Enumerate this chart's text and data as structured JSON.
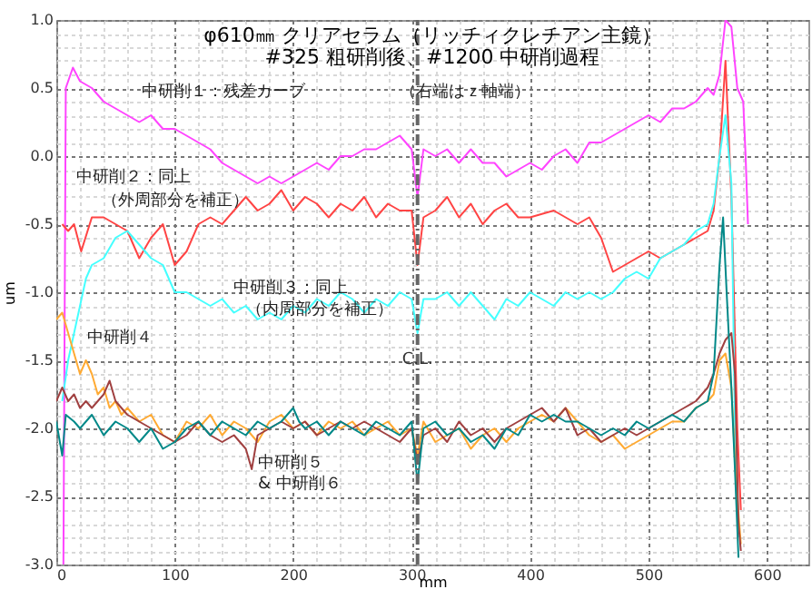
{
  "chart_data": {
    "type": "line",
    "title": "φ610㎜ クリアセラム（リッチィクレチアン主鏡）",
    "subtitle": "#325 粗研削後、#1200 中研削過程",
    "xlabel": "mm",
    "ylabel": "um",
    "xlim": [
      0,
      635
    ],
    "ylim": [
      -3,
      1
    ],
    "xticks": [
      0,
      {
        "value": 20,
        "label": null
      },
      {
        "value": 40,
        "label": null
      },
      {
        "value": 60,
        "label": null
      },
      {
        "value": 80,
        "label": null
      },
      100,
      {
        "value": 120,
        "label": null
      },
      {
        "value": 140,
        "label": null
      },
      {
        "value": 160,
        "label": null
      },
      {
        "value": 180,
        "label": null
      },
      200,
      {
        "value": 220,
        "label": null
      },
      {
        "value": 240,
        "label": null
      },
      {
        "value": 260,
        "label": null
      },
      {
        "value": 280,
        "label": null
      },
      300,
      {
        "value": 320,
        "label": null
      },
      {
        "value": 340,
        "label": null
      },
      {
        "value": 360,
        "label": null
      },
      {
        "value": 380,
        "label": null
      },
      400,
      {
        "value": 420,
        "label": null
      },
      {
        "value": 440,
        "label": null
      },
      {
        "value": 460,
        "label": null
      },
      {
        "value": 480,
        "label": null
      },
      500,
      {
        "value": 520,
        "label": null
      },
      {
        "value": 540,
        "label": null
      },
      {
        "value": 560,
        "label": null
      },
      {
        "value": 580,
        "label": null
      },
      600,
      {
        "value": 620,
        "label": null
      }
    ],
    "yticks": [
      {
        "value": -3,
        "label": "-3.0"
      },
      {
        "value": -2.9,
        "label": null
      },
      {
        "value": -2.8,
        "label": null
      },
      {
        "value": -2.7,
        "label": null
      },
      {
        "value": -2.6,
        "label": null
      },
      -2.5,
      {
        "value": -2.4,
        "label": null
      },
      {
        "value": -2.3,
        "label": null
      },
      {
        "value": -2.2,
        "label": null
      },
      {
        "value": -2.1,
        "label": null
      },
      {
        "value": -2,
        "label": "-2.0"
      },
      {
        "value": -1.9,
        "label": null
      },
      {
        "value": -1.8,
        "label": null
      },
      {
        "value": -1.7,
        "label": null
      },
      {
        "value": -1.6,
        "label": null
      },
      -1.5,
      {
        "value": -1.4,
        "label": null
      },
      {
        "value": -1.3,
        "label": null
      },
      {
        "value": -1.2,
        "label": null
      },
      {
        "value": -1.1,
        "label": null
      },
      {
        "value": -1,
        "label": "-1.0"
      },
      {
        "value": -0.9,
        "label": null
      },
      {
        "value": -0.8,
        "label": null
      },
      {
        "value": -0.7,
        "label": null
      },
      {
        "value": -0.6,
        "label": null
      },
      -0.5,
      {
        "value": -0.4,
        "label": null
      },
      {
        "value": -0.3,
        "label": null
      },
      {
        "value": -0.2,
        "label": null
      },
      {
        "value": -0.1,
        "label": null
      },
      {
        "value": 0,
        "label": "0.0"
      },
      {
        "value": 0.1,
        "label": null
      },
      {
        "value": 0.2,
        "label": null
      },
      {
        "value": 0.3,
        "label": null
      },
      {
        "value": 0.4,
        "label": null
      },
      0.5,
      {
        "value": 0.6,
        "label": null
      },
      {
        "value": 0.7,
        "label": null
      },
      {
        "value": 0.8,
        "label": null
      },
      {
        "value": 0.9,
        "label": null
      },
      {
        "value": 1,
        "label": "1.0"
      }
    ],
    "grid": true,
    "legend": false,
    "marker": "none",
    "line_style": "solid",
    "ref_lines": [
      {
        "axis": "x",
        "value": 305,
        "label": "C.L.",
        "color": "#666666",
        "line_style": "dashed"
      }
    ],
    "annotations": [
      "中研削１：残差カーブ",
      "（右端はｚ軸端）",
      "中研削２：同上",
      "（外周部分を補正）",
      "中研削３：同上",
      "（内周部分を補正）",
      "中研削４",
      "中研削５",
      "& 中研削６"
    ],
    "series": [
      {
        "color": "#ff44ff",
        "x": [
          6,
          8,
          14,
          20,
          30,
          40,
          50,
          60,
          70,
          80,
          90,
          100,
          110,
          120,
          130,
          140,
          150,
          160,
          170,
          180,
          190,
          200,
          210,
          220,
          230,
          240,
          250,
          260,
          270,
          280,
          290,
          300,
          305,
          310,
          320,
          330,
          340,
          350,
          360,
          370,
          380,
          390,
          400,
          410,
          420,
          430,
          440,
          450,
          460,
          470,
          480,
          490,
          500,
          510,
          520,
          530,
          540,
          550,
          555,
          560,
          565,
          570,
          575,
          580,
          582,
          584
        ],
        "values": [
          -3,
          0.5,
          0.65,
          0.55,
          0.5,
          0.4,
          0.35,
          0.3,
          0.25,
          0.3,
          0.2,
          0.2,
          0.15,
          0.1,
          0.05,
          -0.05,
          -0.1,
          -0.15,
          -0.2,
          -0.15,
          -0.2,
          -0.15,
          -0.1,
          -0.05,
          -0.1,
          0,
          0,
          0.05,
          0.05,
          0.1,
          0.15,
          0.05,
          -0.3,
          0.05,
          0,
          0.05,
          -0.05,
          0.05,
          -0.05,
          -0.05,
          -0.15,
          -0.1,
          -0.05,
          -0.1,
          0,
          0.05,
          -0.05,
          0.1,
          0.1,
          0.15,
          0.2,
          0.25,
          0.3,
          0.25,
          0.35,
          0.35,
          0.4,
          0.5,
          0.45,
          0.6,
          1,
          0.95,
          0.5,
          0.4,
          0,
          -0.5
        ]
      },
      {
        "color": "#ff4444",
        "x": [
          5,
          10,
          15,
          21,
          30,
          40,
          50,
          60,
          70,
          80,
          90,
          100,
          110,
          120,
          130,
          140,
          150,
          160,
          170,
          180,
          190,
          200,
          210,
          220,
          230,
          240,
          250,
          260,
          270,
          280,
          290,
          300,
          305,
          310,
          320,
          330,
          340,
          350,
          360,
          370,
          380,
          390,
          400,
          420,
          440,
          450,
          460,
          470,
          480,
          490,
          500,
          510,
          520,
          530,
          540,
          550,
          555,
          560,
          565,
          570,
          575,
          578
        ],
        "values": [
          -0.5,
          -0.55,
          -0.5,
          -0.7,
          -0.45,
          -0.45,
          -0.5,
          -0.55,
          -0.75,
          -0.6,
          -0.5,
          -0.8,
          -0.7,
          -0.5,
          -0.45,
          -0.5,
          -0.4,
          -0.3,
          -0.4,
          -0.35,
          -0.25,
          -0.4,
          -0.3,
          -0.35,
          -0.45,
          -0.35,
          -0.4,
          -0.3,
          -0.45,
          -0.35,
          -0.4,
          -0.4,
          -0.8,
          -0.45,
          -0.4,
          -0.3,
          -0.45,
          -0.35,
          -0.5,
          -0.4,
          -0.35,
          -0.45,
          -0.45,
          -0.4,
          -0.5,
          -0.45,
          -0.6,
          -0.85,
          -0.8,
          -0.75,
          -0.7,
          -0.75,
          -0.7,
          -0.65,
          -0.6,
          -0.55,
          -0.4,
          0,
          0.7,
          -0.3,
          -2,
          -2.6
        ]
      },
      {
        "color": "#44ffff",
        "x": [
          5,
          10,
          15,
          20,
          25,
          30,
          40,
          50,
          60,
          70,
          80,
          90,
          100,
          110,
          120,
          130,
          140,
          150,
          160,
          170,
          180,
          190,
          200,
          210,
          220,
          230,
          240,
          250,
          260,
          270,
          280,
          290,
          300,
          305,
          310,
          320,
          330,
          340,
          350,
          360,
          370,
          380,
          390,
          400,
          410,
          420,
          430,
          440,
          450,
          460,
          470,
          480,
          490,
          500,
          510,
          520,
          530,
          540,
          550,
          555,
          560,
          565,
          570,
          573,
          576
        ],
        "values": [
          -1.8,
          -1.5,
          -1.3,
          -1.1,
          -0.9,
          -0.8,
          -0.75,
          -0.6,
          -0.55,
          -0.65,
          -0.75,
          -0.8,
          -1.0,
          -1.0,
          -1.05,
          -1.1,
          -1.05,
          -1.15,
          -1.1,
          -1.2,
          -1.15,
          -1.2,
          -1.1,
          -1.15,
          -1.05,
          -1.1,
          -1.0,
          -1.05,
          -1.15,
          -1.05,
          -1.1,
          -1.0,
          -1.05,
          -1.3,
          -1.05,
          -1.05,
          -1.0,
          -1.1,
          -1.0,
          -1.1,
          -1.2,
          -1.05,
          -1.1,
          -1.0,
          -1.05,
          -1.1,
          -1.0,
          -1.05,
          -1.0,
          -1.05,
          -1.0,
          -0.9,
          -0.85,
          -0.9,
          -0.75,
          -0.7,
          -0.65,
          -0.55,
          -0.5,
          -0.35,
          0,
          0.3,
          -0.2,
          -2,
          -2.8
        ]
      },
      {
        "color": "#ffaa33",
        "x": [
          0,
          5,
          10,
          15,
          20,
          25,
          30,
          35,
          40,
          45,
          50,
          55,
          60,
          70,
          80,
          90,
          100,
          110,
          120,
          130,
          140,
          150,
          160,
          170,
          180,
          190,
          200,
          210,
          220,
          230,
          240,
          250,
          260,
          270,
          280,
          290,
          300,
          305,
          310,
          320,
          330,
          340,
          350,
          360,
          370,
          380,
          390,
          400,
          410,
          420,
          430,
          440,
          450,
          460,
          470,
          480,
          490,
          500,
          510,
          520,
          530,
          540,
          550,
          555,
          560,
          565,
          570,
          574,
          578
        ],
        "values": [
          -1.2,
          -1.15,
          -1.3,
          -1.45,
          -1.6,
          -1.5,
          -1.6,
          -1.75,
          -1.7,
          -1.85,
          -1.8,
          -1.9,
          -1.85,
          -1.95,
          -1.9,
          -2.05,
          -2.1,
          -1.95,
          -2.0,
          -1.9,
          -2.05,
          -1.95,
          -2.0,
          -2.1,
          -1.95,
          -1.9,
          -2.0,
          -1.95,
          -2.05,
          -1.95,
          -2.0,
          -1.95,
          -2.05,
          -2.0,
          -1.95,
          -2.05,
          -2.0,
          -2.2,
          -1.95,
          -2.1,
          -2.05,
          -2.0,
          -2.15,
          -2.05,
          -2.0,
          -2.1,
          -2.0,
          -1.95,
          -1.9,
          -1.95,
          -1.85,
          -1.95,
          -2.05,
          -2.1,
          -2.05,
          -2.15,
          -2.1,
          -2.05,
          -2.0,
          -1.95,
          -1.95,
          -1.85,
          -1.8,
          -1.75,
          -1.5,
          -1.45,
          -1.7,
          -2.4,
          -2.85
        ]
      },
      {
        "color": "#a04040",
        "x": [
          0,
          5,
          10,
          15,
          20,
          25,
          30,
          40,
          45,
          50,
          60,
          70,
          80,
          90,
          100,
          110,
          120,
          130,
          140,
          150,
          160,
          165,
          170,
          180,
          190,
          200,
          210,
          220,
          230,
          240,
          250,
          260,
          270,
          280,
          290,
          300,
          305,
          310,
          320,
          330,
          340,
          350,
          360,
          370,
          380,
          390,
          400,
          410,
          420,
          430,
          440,
          450,
          460,
          470,
          480,
          490,
          500,
          510,
          520,
          530,
          540,
          550,
          555,
          560,
          565,
          570,
          573,
          576,
          578
        ],
        "values": [
          -1.8,
          -1.7,
          -1.8,
          -1.75,
          -1.85,
          -1.8,
          -1.85,
          -1.75,
          -1.65,
          -1.8,
          -1.9,
          -1.95,
          -2.0,
          -2.05,
          -2.1,
          -2.05,
          -1.95,
          -2.05,
          -2.1,
          -2.05,
          -2.15,
          -2.3,
          -2.05,
          -2.0,
          -1.95,
          -2.0,
          -1.95,
          -2.05,
          -2.0,
          -1.95,
          -2.0,
          -1.95,
          -2.0,
          -2.05,
          -2.1,
          -2.0,
          -2.25,
          -2.05,
          -2.0,
          -2.1,
          -1.95,
          -2.05,
          -2.0,
          -2.1,
          -2.0,
          -1.95,
          -1.9,
          -1.85,
          -1.95,
          -1.85,
          -2.05,
          -2.0,
          -2.1,
          -2.05,
          -2.0,
          -2.05,
          -2.0,
          -1.95,
          -1.9,
          -1.85,
          -1.8,
          -1.7,
          -1.6,
          -1.45,
          -1.35,
          -1.3,
          -1.6,
          -2.7,
          -2.9
        ]
      },
      {
        "color": "#008888",
        "x": [
          0,
          5,
          8,
          15,
          20,
          30,
          40,
          50,
          60,
          70,
          80,
          90,
          100,
          110,
          120,
          130,
          140,
          150,
          160,
          170,
          180,
          190,
          200,
          205,
          210,
          220,
          230,
          240,
          250,
          260,
          270,
          280,
          290,
          300,
          305,
          310,
          320,
          330,
          340,
          350,
          360,
          370,
          380,
          390,
          400,
          410,
          420,
          430,
          440,
          450,
          460,
          470,
          480,
          490,
          500,
          510,
          520,
          530,
          540,
          550,
          555,
          560,
          563,
          566,
          570,
          573,
          576
        ],
        "values": [
          -1.95,
          -2.2,
          -1.9,
          -1.95,
          -2.0,
          -1.9,
          -2.05,
          -1.95,
          -2.0,
          -2.1,
          -2.0,
          -2.15,
          -2.1,
          -2.0,
          -1.95,
          -2.05,
          -1.95,
          -2.0,
          -2.05,
          -1.95,
          -2.0,
          -1.95,
          -1.85,
          -1.95,
          -2.0,
          -1.95,
          -2.05,
          -1.95,
          -2.0,
          -2.05,
          -1.95,
          -2.0,
          -2.05,
          -1.95,
          -2.4,
          -2.0,
          -1.95,
          -2.05,
          -2.0,
          -2.1,
          -2.05,
          -2.15,
          -2.0,
          -2.05,
          -1.9,
          -1.95,
          -1.9,
          -1.95,
          -1.95,
          -2.0,
          -2.05,
          -2.0,
          -2.05,
          -1.95,
          -2.0,
          -1.95,
          -1.9,
          -1.95,
          -1.85,
          -1.8,
          -1.6,
          -0.8,
          -0.45,
          -1.0,
          -1.7,
          -2.3,
          -2.95
        ]
      }
    ]
  }
}
